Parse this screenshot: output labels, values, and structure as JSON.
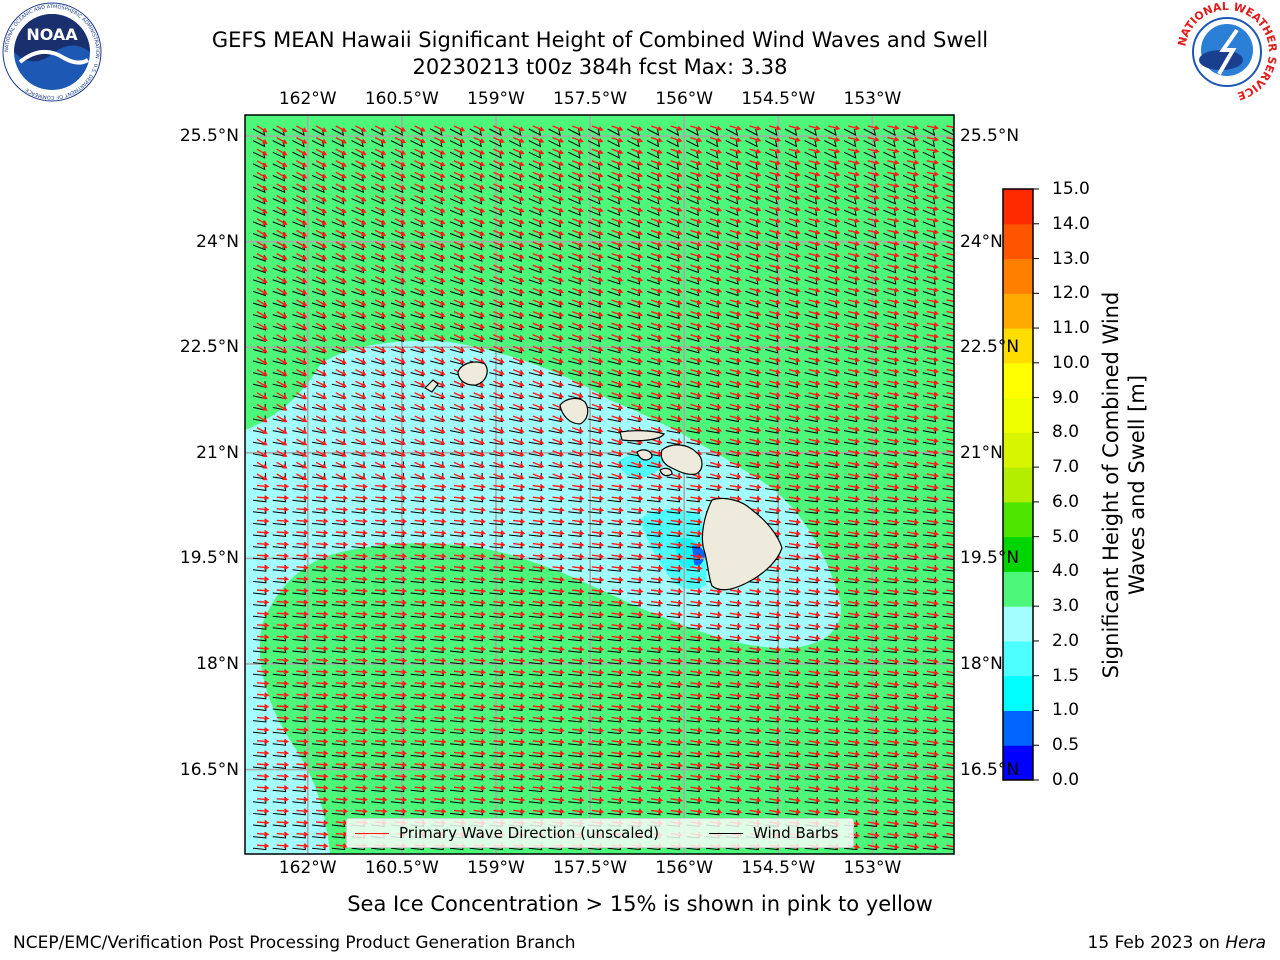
{
  "header": {
    "title_line1": "GEFS MEAN Hawaii Significant Height of Combined Wind Waves and Swell",
    "title_line2": "20230213 t00z 384h fcst   Max: 3.38",
    "noaa_logo_text": "NOAA",
    "noaa_ring_text": "NATIONAL OCEANIC AND ATMOSPHERIC ADMINISTRATION · U.S. DEPARTMENT OF COMMERCE",
    "nws_ring_text": "NATIONAL WEATHER SERVICE"
  },
  "map": {
    "lon_range": [
      -163.0,
      -151.7
    ],
    "lat_range": [
      15.3,
      25.8
    ],
    "lon_ticks": [
      "162°W",
      "160.5°W",
      "159°W",
      "157.5°W",
      "156°W",
      "154.5°W",
      "153°W"
    ],
    "lat_ticks": [
      "25.5°N",
      "24°N",
      "22.5°N",
      "21°N",
      "19.5°N",
      "18°N",
      "16.5°N"
    ],
    "grid": true,
    "ocean_band_color": "#4df77a",
    "land_color": "#efebdc",
    "wave_direction_color": "#ff1a1a",
    "barb_color": "#000000"
  },
  "colorbar": {
    "label": "Significant Height of Combined Wind Waves and Swell [m]",
    "ticks": [
      "0.0",
      "0.5",
      "1.0",
      "1.5",
      "2.0",
      "3.0",
      "4.0",
      "5.0",
      "6.0",
      "7.0",
      "8.0",
      "9.0",
      "10.0",
      "11.0",
      "12.0",
      "13.0",
      "14.0",
      "15.0"
    ],
    "colors": [
      "#0000ff",
      "#0066ff",
      "#00ffff",
      "#4dffff",
      "#a3ffff",
      "#4df77a",
      "#00d500",
      "#4ce600",
      "#b3ee00",
      "#d7f500",
      "#f0ff00",
      "#ffff00",
      "#ffdd00",
      "#ffaa00",
      "#ff8000",
      "#ff5500",
      "#ff2a00",
      "#ff0000"
    ]
  },
  "legend": {
    "wave_label": "Primary Wave Direction (unscaled)",
    "barb_label": "Wind Barbs",
    "location": "lower-center"
  },
  "notes": {
    "sea_ice": "Sea Ice Concentration > 15% is shown in pink to yellow"
  },
  "footer": {
    "left": "NCEP/EMC/Verification Post Processing Product Generation Branch",
    "right_date": "15 Feb 2023 on",
    "right_host": "Hera"
  }
}
